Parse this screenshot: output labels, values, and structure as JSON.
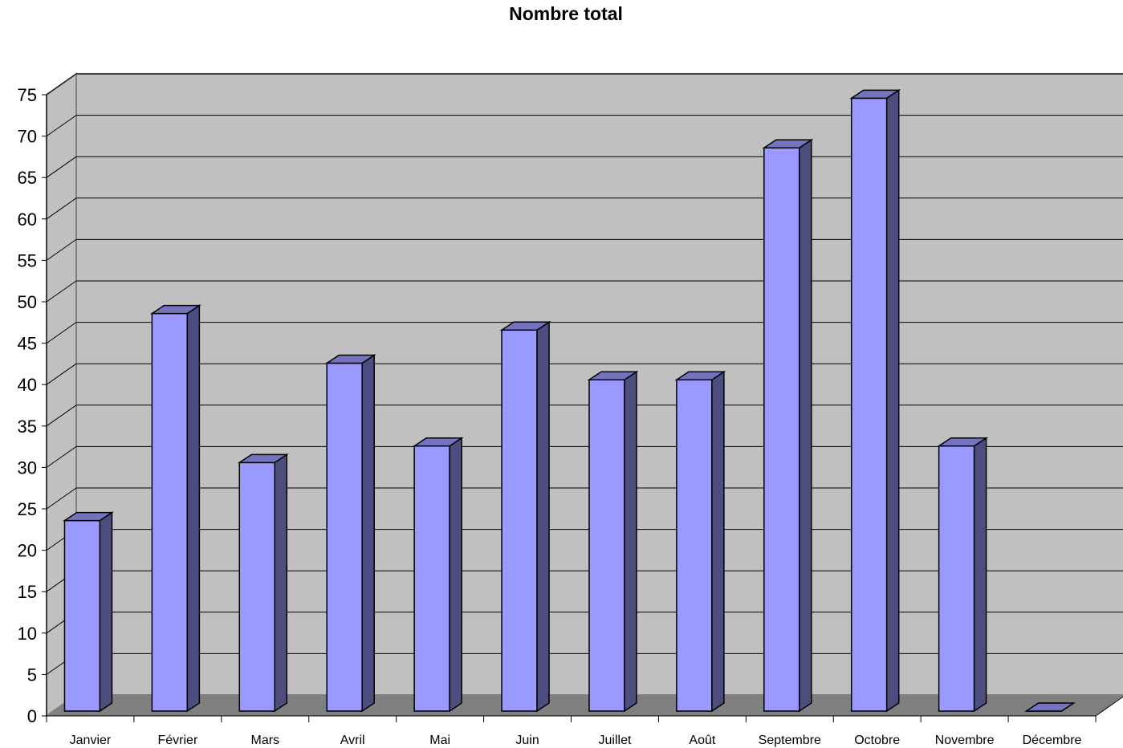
{
  "chart_data": {
    "type": "bar",
    "style": "3d-column",
    "title": "Nombre total",
    "xlabel": "",
    "ylabel": "",
    "ylim": [
      0,
      75
    ],
    "yticks": [
      0,
      5,
      10,
      15,
      20,
      25,
      30,
      35,
      40,
      45,
      50,
      55,
      60,
      65,
      70,
      75
    ],
    "grid": true,
    "legend": "none",
    "categories": [
      "Janvier",
      "Février",
      "Mars",
      "Avril",
      "Mai",
      "Juin",
      "Juillet",
      "Août",
      "Septembre",
      "Octobre",
      "Novembre",
      "Décembre"
    ],
    "values": [
      23,
      48,
      30,
      42,
      32,
      46,
      40,
      40,
      68,
      74,
      32,
      0
    ],
    "colors": {
      "bar_front": "#9999ff",
      "bar_top": "#7373bf",
      "bar_side": "#4d4d80",
      "back_wall": "#c0c0c0",
      "side_wall": "#c0c0c0",
      "floor": "#808080",
      "gridline": "#000000"
    }
  }
}
